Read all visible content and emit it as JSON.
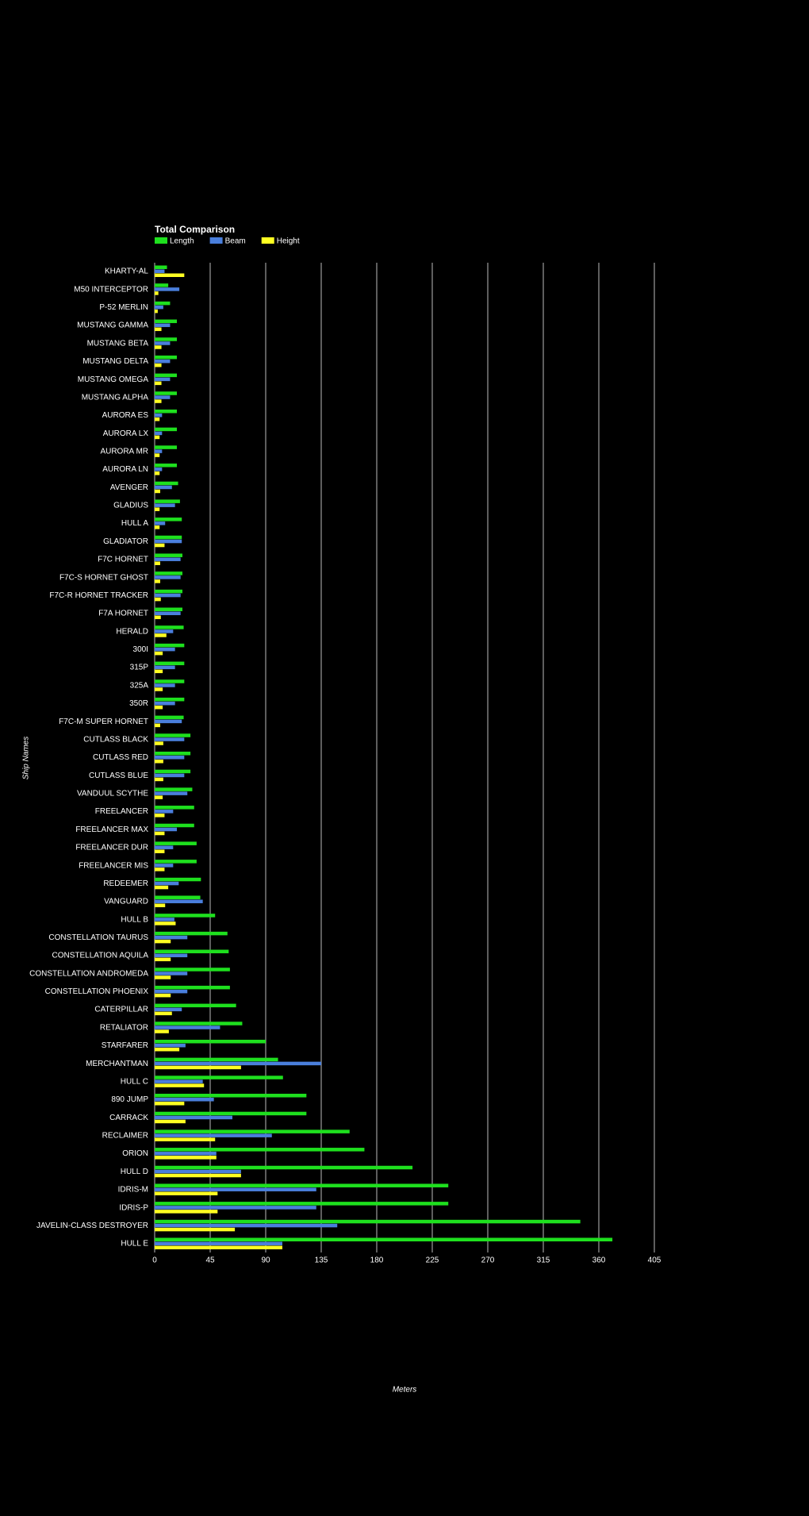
{
  "chart_data": {
    "type": "hbar",
    "title": "Total Comparison",
    "x_label": "Meters",
    "y_label": "Ship Names",
    "categories": [
      "KHARTY-AL",
      "M50 INTERCEPTOR",
      "P-52 MERLIN",
      "MUSTANG GAMMA",
      "MUSTANG BETA",
      "MUSTANG DELTA",
      "MUSTANG OMEGA",
      "MUSTANG ALPHA",
      "AURORA ES",
      "AURORA LX",
      "AURORA MR",
      "AURORA LN",
      "AVENGER",
      "GLADIUS",
      "HULL A",
      "GLADIATOR",
      "F7C HORNET",
      "F7C-S HORNET GHOST",
      "F7C-R HORNET TRACKER",
      "F7A HORNET",
      "HERALD",
      "300I",
      "315P",
      "325A",
      "350R",
      "F7C-M SUPER HORNET",
      "CUTLASS BLACK",
      "CUTLASS RED",
      "CUTLASS BLUE",
      "VANDUUL SCYTHE",
      "FREELANCER",
      "FREELANCER MAX",
      "FREELANCER DUR",
      "FREELANCER MIS",
      "REDEEMER",
      "VANGUARD",
      "HULL B",
      "CONSTELLATION TAURUS",
      "CONSTELLATION AQUILA",
      "CONSTELLATION ANDROMEDA",
      "CONSTELLATION PHOENIX",
      "CATERPILLAR",
      "RETALIATOR",
      "STARFARER",
      "MERCHANTMAN",
      "HULL C",
      "890 JUMP",
      "CARRACK",
      "RECLAIMER",
      "ORION",
      "HULL D",
      "IDRIS-M",
      "IDRIS-P",
      "JAVELIN-CLASS DESTROYER",
      "HULL E"
    ],
    "series": [
      {
        "name": "Length",
        "color": "#1ee01e",
        "values": [
          10,
          11,
          12.5,
          18,
          18,
          18,
          18,
          18,
          18,
          18,
          18,
          18,
          19,
          20.5,
          22,
          22,
          22.5,
          22.5,
          22.5,
          22.5,
          23.5,
          24,
          24,
          24,
          24,
          23.5,
          29,
          29,
          29,
          30.5,
          32,
          32,
          34,
          34,
          37.5,
          37,
          49,
          59,
          60,
          61,
          61,
          66,
          71,
          90,
          100,
          104,
          123,
          123,
          158,
          170,
          209,
          238,
          238,
          345,
          371
        ]
      },
      {
        "name": "Beam",
        "color": "#4a7fdc",
        "values": [
          8,
          20,
          7,
          12.5,
          12.5,
          12.5,
          12.5,
          12.5,
          6,
          6,
          6,
          6,
          14,
          16.5,
          8.5,
          22,
          21,
          21,
          21,
          21,
          15,
          16.5,
          16.5,
          16.5,
          16.5,
          22,
          24,
          24,
          24,
          26.5,
          15,
          18,
          15,
          15,
          19.5,
          39,
          16,
          26.5,
          26.5,
          26.5,
          26.5,
          22,
          53,
          25,
          135,
          39,
          48,
          63,
          95,
          50,
          70,
          131,
          131,
          148,
          103.5
        ]
      },
      {
        "name": "Height",
        "color": "#ffff22",
        "values": [
          24,
          3,
          2.5,
          5.5,
          5.5,
          5.5,
          5.5,
          5.5,
          4,
          4,
          4,
          4,
          4.5,
          4,
          4,
          8,
          4.5,
          4.5,
          5,
          5,
          9.5,
          6.5,
          6.5,
          6.5,
          6.5,
          4.5,
          7,
          7,
          7,
          6.5,
          8,
          8,
          8,
          8,
          11,
          8.5,
          17,
          13,
          13,
          13,
          13,
          14,
          11.5,
          20,
          70,
          40,
          24,
          25,
          49,
          50,
          70,
          51,
          51,
          65,
          103.5
        ]
      }
    ],
    "xlim": [
      0,
      405
    ],
    "xticks": [
      0,
      45,
      90,
      135,
      180,
      225,
      270,
      315,
      360,
      405
    ],
    "grid": true
  }
}
